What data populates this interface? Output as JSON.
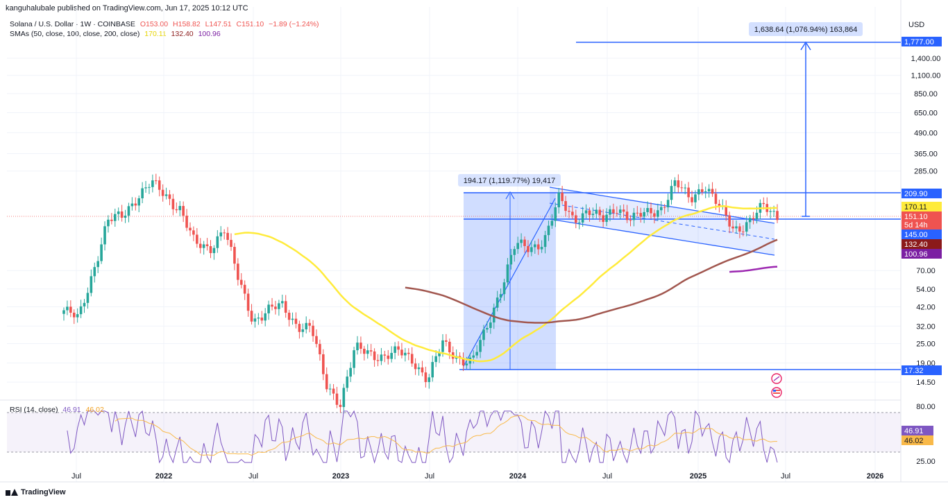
{
  "header": {
    "publisher": "kanguhalubale published on TradingView.com, Jun 17, 2025 10:12 UTC"
  },
  "legend": {
    "symbol": "Solana / U.S. Dollar · 1W · COINBASE",
    "open": "O153.00",
    "high": "H158.82",
    "low": "L147.51",
    "close": "C151.10",
    "change": "−1.89 (−1.24%)",
    "sma_label": "SMAs (50, close, 100, close, 200, close)",
    "sma50_value": "170.11",
    "sma100_value": "132.40",
    "sma200_value": "100.96",
    "rsi_label": "RSI (14, close)",
    "rsi_value": "46.91",
    "rsi_ma_value": "46.02"
  },
  "currency": "USD",
  "footer": {
    "brand": "TradingView"
  },
  "colors": {
    "up": "#26a69a",
    "down": "#ef5350",
    "sma50": "#ffeb3b",
    "sma100": "#a1564e",
    "sma200": "#9c27b0",
    "accent": "#2962ff",
    "rsi": "#7e57c2",
    "rsi_ma": "#f9b949"
  },
  "chart_data": {
    "type": "line",
    "scale": "log",
    "y_ticks": [
      "1,400.00",
      "1,100.00",
      "850.00",
      "650.00",
      "490.00",
      "365.00",
      "285.00",
      "70.00",
      "54.00",
      "42.00",
      "32.00",
      "25.00",
      "19.00",
      "14.50"
    ],
    "x_ticks": [
      "Jul",
      "2022",
      "Jul",
      "2023",
      "Jul",
      "2024",
      "Jul",
      "2025",
      "Jul",
      "2026"
    ],
    "price_labels": [
      {
        "text": "1,777.00",
        "color": "#2962ff",
        "value": 1777
      },
      {
        "text": "209.90",
        "color": "#2962ff",
        "value": 209.9
      },
      {
        "text": "170.11",
        "color": "#ffeb3b",
        "value": 170.11
      },
      {
        "text": "151.10",
        "color": "#ef5350",
        "value": 151.1
      },
      {
        "text": "5d 14h",
        "color": "#ef5350",
        "value": 140
      },
      {
        "text": "145.00",
        "color": "#2962ff",
        "value": 145
      },
      {
        "text": "132.40",
        "color": "#8b1a1a",
        "value": 132.4
      },
      {
        "text": "100.96",
        "color": "#7b1fa2",
        "value": 100.96
      },
      {
        "text": "17.32",
        "color": "#2962ff",
        "value": 17.32
      }
    ],
    "annotations": {
      "measure_past": "194.17 (1,119.77%) 19,417",
      "measure_target": "1,638.64 (1,076.94%) 163,864"
    },
    "rsi_ticks": [
      "80.00",
      "25.00"
    ],
    "rsi_labels": [
      {
        "text": "46.91",
        "value": 46.91
      },
      {
        "text": "46.02",
        "value": 46.02
      }
    ],
    "weekly_close": [
      {
        "x": "2021-06",
        "y": 40
      },
      {
        "x": "2021-07",
        "y": 35
      },
      {
        "x": "2021-08",
        "y": 70
      },
      {
        "x": "2021-08b",
        "y": 140
      },
      {
        "x": "2021-09",
        "y": 150
      },
      {
        "x": "2021-10",
        "y": 200
      },
      {
        "x": "2021-11",
        "y": 240
      },
      {
        "x": "2021-12",
        "y": 200
      },
      {
        "x": "2022-01",
        "y": 170
      },
      {
        "x": "2022-02",
        "y": 100
      },
      {
        "x": "2022-03",
        "y": 95
      },
      {
        "x": "2022-04",
        "y": 130
      },
      {
        "x": "2022-05",
        "y": 60
      },
      {
        "x": "2022-06",
        "y": 35
      },
      {
        "x": "2022-07",
        "y": 40
      },
      {
        "x": "2022-08",
        "y": 42
      },
      {
        "x": "2022-09",
        "y": 33
      },
      {
        "x": "2022-10",
        "y": 31
      },
      {
        "x": "2022-11",
        "y": 14
      },
      {
        "x": "2022-12",
        "y": 11
      },
      {
        "x": "2023-01",
        "y": 23
      },
      {
        "x": "2023-02",
        "y": 22
      },
      {
        "x": "2023-03",
        "y": 21
      },
      {
        "x": "2023-04",
        "y": 22
      },
      {
        "x": "2023-05",
        "y": 20
      },
      {
        "x": "2023-06",
        "y": 15
      },
      {
        "x": "2023-07",
        "y": 25
      },
      {
        "x": "2023-08",
        "y": 21
      },
      {
        "x": "2023-09",
        "y": 19
      },
      {
        "x": "2023-10",
        "y": 30
      },
      {
        "x": "2023-11",
        "y": 55
      },
      {
        "x": "2023-12",
        "y": 100
      },
      {
        "x": "2024-01",
        "y": 95
      },
      {
        "x": "2024-02",
        "y": 110
      },
      {
        "x": "2024-03",
        "y": 190
      },
      {
        "x": "2024-04",
        "y": 145
      },
      {
        "x": "2024-05",
        "y": 165
      },
      {
        "x": "2024-06",
        "y": 140
      },
      {
        "x": "2024-07",
        "y": 175
      },
      {
        "x": "2024-08",
        "y": 145
      },
      {
        "x": "2024-09",
        "y": 155
      },
      {
        "x": "2024-10",
        "y": 170
      },
      {
        "x": "2024-11",
        "y": 240
      },
      {
        "x": "2024-12",
        "y": 190
      },
      {
        "x": "2025-01",
        "y": 240
      },
      {
        "x": "2025-02",
        "y": 170
      },
      {
        "x": "2025-03",
        "y": 125
      },
      {
        "x": "2025-04",
        "y": 140
      },
      {
        "x": "2025-05",
        "y": 170
      },
      {
        "x": "2025-06",
        "y": 151.1
      }
    ]
  }
}
